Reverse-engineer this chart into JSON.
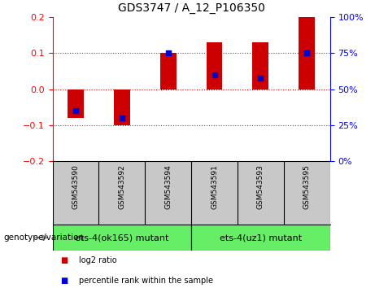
{
  "title": "GDS3747 / A_12_P106350",
  "samples": [
    "GSM543590",
    "GSM543592",
    "GSM543594",
    "GSM543591",
    "GSM543593",
    "GSM543595"
  ],
  "log2_ratio": [
    -0.08,
    -0.1,
    0.1,
    0.13,
    0.13,
    0.2
  ],
  "percentile_rank": [
    35,
    30,
    75,
    60,
    58,
    75
  ],
  "groups": [
    {
      "label": "ets-4(ok165) mutant",
      "color": "#66EE66"
    },
    {
      "label": "ets-4(uz1) mutant",
      "color": "#66EE66"
    }
  ],
  "ylim_left": [
    -0.2,
    0.2
  ],
  "ylim_right": [
    0,
    100
  ],
  "left_ticks": [
    -0.2,
    -0.1,
    0,
    0.1,
    0.2
  ],
  "right_ticks": [
    0,
    25,
    50,
    75,
    100
  ],
  "bar_color": "#CC0000",
  "dot_color": "#0000CC",
  "bar_width": 0.35,
  "dot_size": 18,
  "genotype_label": "genotype/variation",
  "legend_log2": "log2 ratio",
  "legend_pct": "percentile rank within the sample",
  "bg_plot": "#FFFFFF",
  "bg_sample_row": "#C8C8C8",
  "hline_zero_color": "#CC0000",
  "hline_dotted_color": "#555555"
}
